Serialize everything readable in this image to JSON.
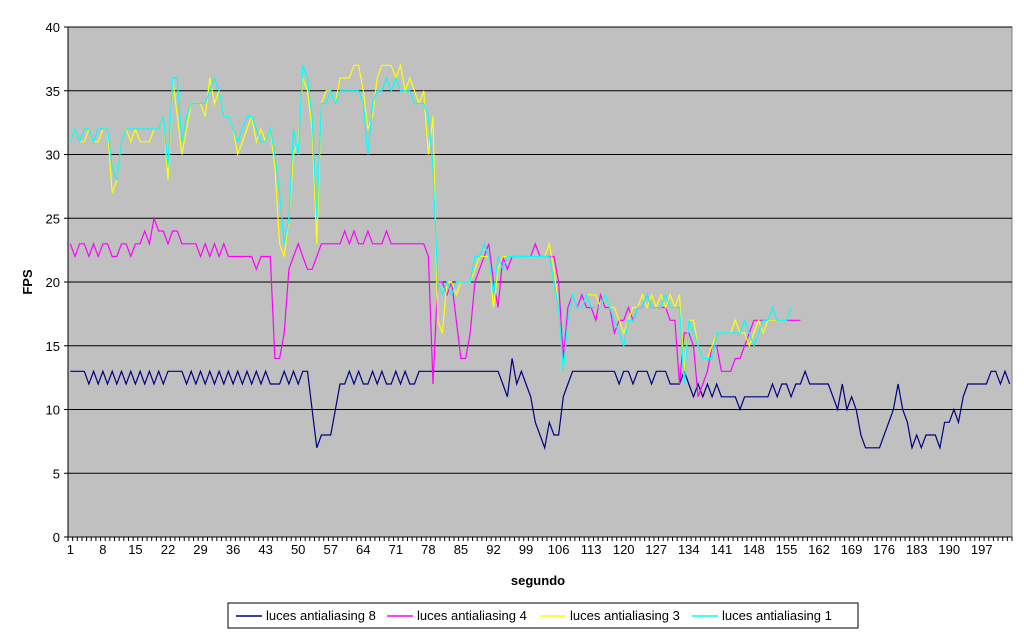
{
  "chart_data": {
    "type": "line",
    "title": "",
    "xlabel": "segundo",
    "ylabel": "FPS",
    "ylim": [
      0,
      40
    ],
    "yticks": [
      0,
      5,
      10,
      15,
      20,
      25,
      30,
      35,
      40
    ],
    "x_start": 1,
    "x_count": 203,
    "xtick_step": 7,
    "grid": "horizontal major",
    "legend_position": "bottom",
    "plot_background": "#C0C0C0",
    "series": [
      {
        "name": "luces antialiasing 8",
        "color": "#000080",
        "values": [
          13,
          13,
          13,
          13,
          12,
          13,
          12,
          13,
          12,
          13,
          12,
          13,
          12,
          13,
          12,
          13,
          12,
          13,
          12,
          13,
          12,
          13,
          13,
          13,
          13,
          12,
          13,
          12,
          13,
          12,
          13,
          12,
          13,
          12,
          13,
          12,
          13,
          12,
          13,
          12,
          13,
          12,
          13,
          12,
          12,
          12,
          13,
          12,
          13,
          12,
          13,
          13,
          10,
          7,
          8,
          8,
          8,
          10,
          12,
          12,
          13,
          12,
          13,
          12,
          12,
          13,
          12,
          13,
          12,
          12,
          13,
          12,
          13,
          12,
          12,
          13,
          13,
          13,
          13,
          13,
          13,
          13,
          13,
          13,
          13,
          13,
          13,
          13,
          13,
          13,
          13,
          13,
          13,
          12,
          11,
          14,
          12,
          13,
          12,
          11,
          9,
          8,
          7,
          9,
          8,
          8,
          11,
          12,
          13,
          13,
          13,
          13,
          13,
          13,
          13,
          13,
          13,
          13,
          12,
          13,
          13,
          12,
          13,
          13,
          13,
          12,
          13,
          13,
          13,
          12,
          12,
          12,
          13,
          12,
          11,
          12,
          11,
          12,
          11,
          12,
          11,
          11,
          11,
          11,
          10,
          11,
          11,
          11,
          11,
          11,
          11,
          12,
          11,
          12,
          12,
          11,
          12,
          12,
          13,
          12,
          12,
          12,
          12,
          12,
          11,
          10,
          12,
          10,
          11,
          10,
          8,
          7,
          7,
          7,
          7,
          8,
          9,
          10,
          12,
          10,
          9,
          7,
          8,
          7,
          8,
          8,
          8,
          7,
          9,
          9,
          10,
          9,
          11,
          12,
          12,
          12,
          12,
          12,
          13,
          13,
          12,
          13,
          12
        ]
      },
      {
        "name": "luces antialiasing 4",
        "color": "#FF00FF",
        "values": [
          23,
          22,
          23,
          23,
          22,
          23,
          22,
          23,
          23,
          22,
          22,
          23,
          23,
          22,
          23,
          23,
          24,
          23,
          25,
          24,
          24,
          23,
          24,
          24,
          23,
          23,
          23,
          23,
          22,
          23,
          22,
          23,
          22,
          23,
          22,
          22,
          22,
          22,
          22,
          22,
          21,
          22,
          22,
          22,
          14,
          14,
          16,
          21,
          22,
          23,
          22,
          21,
          21,
          22,
          23,
          23,
          23,
          23,
          23,
          24,
          23,
          24,
          23,
          23,
          24,
          23,
          23,
          23,
          24,
          23,
          23,
          23,
          23,
          23,
          23,
          23,
          23,
          22,
          12,
          20,
          20,
          19,
          20,
          17,
          14,
          14,
          16,
          20,
          21,
          22,
          23,
          20,
          18,
          22,
          21,
          22,
          22,
          22,
          22,
          22,
          23,
          22,
          22,
          22,
          22,
          20,
          14,
          18,
          19,
          18,
          19,
          18,
          18,
          17,
          19,
          18,
          18,
          16,
          17,
          17,
          18,
          17,
          18,
          18,
          19,
          18,
          18,
          18,
          18,
          17,
          17,
          12,
          16,
          16,
          15,
          11,
          12,
          13,
          15,
          15,
          13,
          13,
          13,
          14,
          14,
          15,
          16,
          17,
          17,
          17,
          17,
          17,
          17,
          17,
          17,
          17,
          17,
          17
        ]
      },
      {
        "name": "luces antialiasing 3",
        "color": "#FFFF00",
        "values": [
          31,
          32,
          31,
          31,
          32,
          31,
          31,
          32,
          32,
          27,
          28,
          31,
          32,
          31,
          32,
          31,
          31,
          31,
          32,
          32,
          33,
          28,
          36,
          33,
          30,
          32,
          34,
          34,
          34,
          33,
          36,
          34,
          35,
          33,
          33,
          32,
          30,
          31,
          32,
          33,
          31,
          32,
          31,
          32,
          29,
          23,
          22,
          25,
          30,
          31,
          36,
          35,
          32,
          23,
          34,
          35,
          35,
          34,
          36,
          36,
          36,
          37,
          37,
          35,
          32,
          33,
          36,
          37,
          37,
          37,
          36,
          37,
          35,
          36,
          35,
          34,
          35,
          30,
          33,
          17,
          16,
          20,
          20,
          19,
          20,
          20,
          20,
          21,
          22,
          22,
          22,
          18,
          21,
          22,
          22,
          22,
          22,
          22,
          22,
          22,
          22,
          22,
          22,
          23,
          21,
          18,
          13,
          17,
          19,
          18,
          18,
          19,
          19,
          19,
          18,
          19,
          18,
          18,
          17,
          16,
          17,
          18,
          18,
          19,
          18,
          19,
          18,
          19,
          18,
          19,
          18,
          19,
          13,
          17,
          17,
          15,
          14,
          14,
          15,
          16,
          16,
          16,
          16,
          17,
          16,
          16,
          15,
          16,
          17,
          16,
          17,
          17,
          17,
          17,
          17,
          18
        ]
      },
      {
        "name": "luces antialiasing 1",
        "color": "#00FFFF",
        "values": [
          31,
          32,
          31,
          32,
          32,
          31,
          32,
          32,
          32,
          29,
          28,
          31,
          32,
          32,
          32,
          32,
          32,
          32,
          32,
          32,
          33,
          29,
          36,
          36,
          31,
          33,
          34,
          34,
          34,
          34,
          35,
          36,
          35,
          33,
          33,
          32,
          31,
          32,
          33,
          33,
          32,
          31,
          31,
          32,
          30,
          27,
          23,
          25,
          32,
          30,
          37,
          36,
          33,
          25,
          34,
          34,
          35,
          34,
          35,
          35,
          35,
          35,
          35,
          34,
          30,
          34,
          35,
          35,
          36,
          35,
          36,
          35,
          35,
          35,
          34,
          34,
          34,
          33,
          29,
          20,
          19,
          20,
          19,
          20,
          20,
          20,
          20,
          22,
          22,
          23,
          22,
          19,
          22,
          21,
          22,
          22,
          22,
          22,
          22,
          22,
          22,
          22,
          22,
          22,
          20,
          18,
          13,
          17,
          19,
          18,
          18,
          19,
          18,
          18,
          18,
          19,
          18,
          17,
          16,
          15,
          17,
          17,
          18,
          18,
          19,
          18,
          18,
          18,
          19,
          18,
          18,
          18,
          12,
          17,
          16,
          15,
          14,
          14,
          14,
          16,
          16,
          16,
          16,
          16,
          16,
          17,
          16,
          15,
          16,
          17,
          17,
          18,
          17,
          17,
          17,
          18
        ]
      }
    ]
  }
}
